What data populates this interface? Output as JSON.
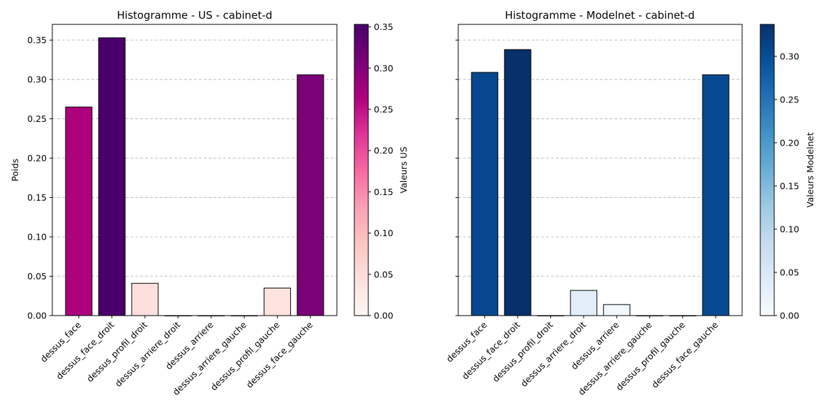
{
  "figure": {
    "left_title": "Histogramme - US - cabinet-d",
    "right_title": "Histogramme - Modelnet - cabinet-d"
  },
  "chart_data": [
    {
      "type": "bar",
      "title": "Histogramme - US - cabinet-d",
      "xlabel": "",
      "ylabel": "Poids",
      "ylim": [
        0,
        0.37
      ],
      "yticks": [
        "0.00",
        "0.05",
        "0.10",
        "0.15",
        "0.20",
        "0.25",
        "0.30",
        "0.35"
      ],
      "grid": "horizontal dashed",
      "colormap": "RdPu",
      "colorbar": {
        "label": "Valeurs US",
        "range": [
          0,
          0.353
        ],
        "ticks": [
          "0.00",
          "0.05",
          "0.10",
          "0.15",
          "0.20",
          "0.25",
          "0.30",
          "0.35"
        ]
      },
      "categories": [
        "dessus_face",
        "dessus_face_droit",
        "dessus_profil_droit",
        "dessus_arriere_droit",
        "dessus_arriere",
        "dessus_arriere_gauche",
        "dessus_profil_gauche",
        "dessus_face_gauche"
      ],
      "values": [
        0.265,
        0.353,
        0.041,
        0.0,
        0.0,
        0.0,
        0.035,
        0.306
      ],
      "bar_colors": [
        "#ad017e",
        "#49006a",
        "#fde0dd",
        "#fff7f3",
        "#fff7f3",
        "#fff7f3",
        "#fde3df",
        "#7a0177"
      ]
    },
    {
      "type": "bar",
      "title": "Histogramme - Modelnet - cabinet-d",
      "xlabel": "",
      "ylabel": "",
      "ylim": [
        0,
        0.37
      ],
      "grid": "horizontal dashed",
      "colormap": "Blues",
      "colorbar": {
        "label": "Valeurs Modelnet",
        "range": [
          0,
          0.337
        ],
        "ticks": [
          "0.00",
          "0.05",
          "0.10",
          "0.15",
          "0.20",
          "0.25",
          "0.30"
        ]
      },
      "categories": [
        "dessus_face",
        "dessus_face_droit",
        "dessus_profil_droit",
        "dessus_arriere_droit",
        "dessus_arriere",
        "dessus_arriere_gauche",
        "dessus_profil_gauche",
        "dessus_face_gauche"
      ],
      "values": [
        0.309,
        0.338,
        0.0,
        0.032,
        0.014,
        0.0,
        0.0,
        0.306
      ],
      "bar_colors": [
        "#08478d",
        "#08306b",
        "#f7fbff",
        "#e3eef9",
        "#f2f7fd",
        "#f7fbff",
        "#f7fbff",
        "#084a91"
      ]
    }
  ]
}
